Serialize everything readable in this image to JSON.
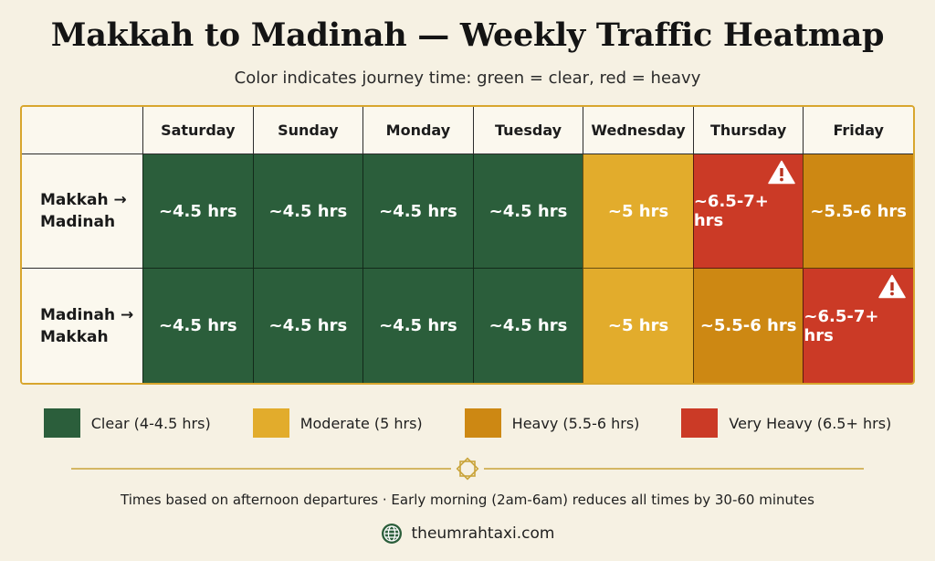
{
  "title": "Makkah to Madinah — Weekly Traffic Heatmap",
  "subtitle": "Color indicates journey time: green = clear, red = heavy",
  "chart_data": {
    "type": "heatmap",
    "columns": [
      "Saturday",
      "Sunday",
      "Monday",
      "Tuesday",
      "Wednesday",
      "Thursday",
      "Friday"
    ],
    "rows": [
      {
        "label": "Makkah → Madinah",
        "values": [
          "~4.5 hrs",
          "~4.5 hrs",
          "~4.5 hrs",
          "~4.5 hrs",
          "~5 hrs",
          "~6.5-7+ hrs",
          "~5.5-6 hrs"
        ],
        "levels": [
          "clear",
          "clear",
          "clear",
          "clear",
          "moderate",
          "very_heavy",
          "heavy"
        ],
        "warning_icons": [
          false,
          false,
          false,
          false,
          false,
          true,
          false
        ]
      },
      {
        "label": "Madinah → Makkah",
        "values": [
          "~4.5 hrs",
          "~4.5 hrs",
          "~4.5 hrs",
          "~4.5 hrs",
          "~5 hrs",
          "~5.5-6 hrs",
          "~6.5-7+ hrs"
        ],
        "levels": [
          "clear",
          "clear",
          "clear",
          "clear",
          "moderate",
          "heavy",
          "very_heavy"
        ],
        "warning_icons": [
          false,
          false,
          false,
          false,
          false,
          false,
          true
        ]
      }
    ],
    "legend": [
      {
        "level": "clear",
        "label": "Clear (4-4.5 hrs)",
        "color": "#2b5e3b"
      },
      {
        "level": "moderate",
        "label": "Moderate (5 hrs)",
        "color": "#e2ac2c"
      },
      {
        "level": "heavy",
        "label": "Heavy (5.5-6 hrs)",
        "color": "#cd8813"
      },
      {
        "level": "very_heavy",
        "label": "Very Heavy (6.5+ hrs)",
        "color": "#cb3a26"
      }
    ]
  },
  "footnote": "Times based on afternoon departures  ·  Early morning (2am-6am) reduces all times by 30-60 minutes",
  "website": "theumrahtaxi.com",
  "icons": {
    "warning": "warning-triangle-icon",
    "globe": "globe-icon",
    "ornament": "star-ornament-icon"
  },
  "colors": {
    "background": "#f6f1e3",
    "border": "#d8a62e",
    "divider": "#c9a43a",
    "globe": "#2b5e3b"
  }
}
